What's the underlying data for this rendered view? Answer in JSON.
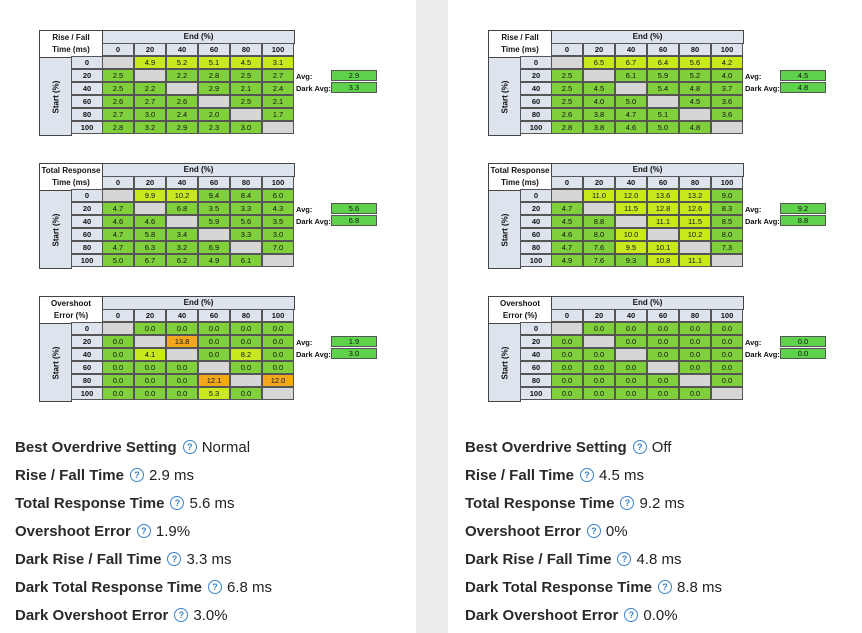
{
  "end_header": "End (%)",
  "start_header": "Start (%)",
  "col_headers": [
    "0",
    "20",
    "40",
    "60",
    "80",
    "100"
  ],
  "row_headers": [
    "0",
    "20",
    "40",
    "60",
    "80",
    "100"
  ],
  "avg_label": "Avg:",
  "dark_avg_label": "Dark Avg:",
  "colors": {
    "green": "#7fd03a",
    "yellow": "#c9e91e",
    "orange": "#f2a81a",
    "grey": "#d6d6d6",
    "avg_box": "#5ed24a",
    "help_blue": "#3a84c9"
  },
  "panels": [
    {
      "tables": [
        {
          "title": "Rise / Fall\nTime (ms)",
          "avg": "2.9",
          "dark_avg": "3.3",
          "rows": [
            [
              "",
              "4.9",
              "5.2",
              "5.1",
              "4.5",
              "3.1"
            ],
            [
              "2.5",
              "",
              "2.2",
              "2.8",
              "2.5",
              "2.7"
            ],
            [
              "2.5",
              "2.2",
              "",
              "2.9",
              "2.1",
              "2.4"
            ],
            [
              "2.6",
              "2.7",
              "2.6",
              "",
              "2.5",
              "2.1"
            ],
            [
              "2.7",
              "3.0",
              "2.4",
              "2.0",
              "",
              "1.7"
            ],
            [
              "2.8",
              "3.2",
              "2.9",
              "2.3",
              "3.0",
              ""
            ]
          ]
        },
        {
          "title": "Total Response\nTime (ms)",
          "avg": "5.6",
          "dark_avg": "6.8",
          "rows": [
            [
              "",
              "9.9",
              "10.2",
              "9.4",
              "8.4",
              "6.0"
            ],
            [
              "4.7",
              "",
              "6.8",
              "3.5",
              "3.3",
              "4.3"
            ],
            [
              "4.6",
              "4.6",
              "",
              "5.9",
              "5.6",
              "3.5"
            ],
            [
              "4.7",
              "5.8",
              "3.4",
              "",
              "3.3",
              "3.0"
            ],
            [
              "4.7",
              "6.3",
              "3.2",
              "6.9",
              "",
              "7.0"
            ],
            [
              "5.0",
              "6.7",
              "6.2",
              "4.9",
              "6.1",
              ""
            ]
          ]
        },
        {
          "title": "Overshoot\nError (%)",
          "avg": "1.9",
          "dark_avg": "3.0",
          "rows": [
            [
              "",
              "0.0",
              "0.0",
              "0.0",
              "0.0",
              "0.0"
            ],
            [
              "0.0",
              "",
              "13.8",
              "0.0",
              "0.0",
              "0.0"
            ],
            [
              "0.0",
              "4.1",
              "",
              "0.0",
              "8.2",
              "0.0"
            ],
            [
              "0.0",
              "0.0",
              "0.0",
              "",
              "0.0",
              "0.0"
            ],
            [
              "0.0",
              "0.0",
              "0.0",
              "12.1",
              "",
              "12.0"
            ],
            [
              "0.0",
              "0.0",
              "0.0",
              "5.3",
              "0.0",
              ""
            ]
          ]
        }
      ],
      "settings": [
        {
          "label": "Best Overdrive Setting",
          "value": "Normal"
        },
        {
          "label": "Rise / Fall Time",
          "value": "2.9 ms"
        },
        {
          "label": "Total Response Time",
          "value": "5.6 ms"
        },
        {
          "label": "Overshoot Error",
          "value": "1.9%"
        },
        {
          "label": "Dark Rise / Fall Time",
          "value": "3.3 ms"
        },
        {
          "label": "Dark Total Response Time",
          "value": "6.8 ms"
        },
        {
          "label": "Dark Overshoot Error",
          "value": "3.0%"
        }
      ]
    },
    {
      "tables": [
        {
          "title": "Rise / Fall\nTime (ms)",
          "avg": "4.5",
          "dark_avg": "4.8",
          "rows": [
            [
              "",
              "6.5",
              "6.7",
              "6.4",
              "5.6",
              "4.2"
            ],
            [
              "2.5",
              "",
              "6.1",
              "5.9",
              "5.2",
              "4.0"
            ],
            [
              "2.5",
              "4.5",
              "",
              "5.4",
              "4.8",
              "3.7"
            ],
            [
              "2.5",
              "4.0",
              "5.0",
              "",
              "4.5",
              "3.6"
            ],
            [
              "2.6",
              "3.8",
              "4.7",
              "5.1",
              "",
              "3.6"
            ],
            [
              "2.8",
              "3.8",
              "4.6",
              "5.0",
              "4.8",
              ""
            ]
          ]
        },
        {
          "title": "Total Response\nTime (ms)",
          "avg": "9.2",
          "dark_avg": "8.8",
          "rows": [
            [
              "",
              "11.0",
              "12.0",
              "13.6",
              "13.2",
              "9.0"
            ],
            [
              "4.7",
              "",
              "11.5",
              "12.8",
              "12.6",
              "8.3"
            ],
            [
              "4.5",
              "8.8",
              "",
              "11.1",
              "11.5",
              "8.5"
            ],
            [
              "4.6",
              "8.0",
              "10.0",
              "",
              "10.2",
              "8.0"
            ],
            [
              "4.7",
              "7.6",
              "9.5",
              "10.1",
              "",
              "7.3"
            ],
            [
              "4.9",
              "7.6",
              "9.3",
              "10.8",
              "11.1",
              ""
            ]
          ]
        },
        {
          "title": "Overshoot\nError (%)",
          "avg": "0.0",
          "dark_avg": "0.0",
          "rows": [
            [
              "",
              "0.0",
              "0.0",
              "0.0",
              "0.0",
              "0.0"
            ],
            [
              "0.0",
              "",
              "0.0",
              "0.0",
              "0.0",
              "0.0"
            ],
            [
              "0.0",
              "0.0",
              "",
              "0.0",
              "0.0",
              "0.0"
            ],
            [
              "0.0",
              "0.0",
              "0.0",
              "",
              "0.0",
              "0.0"
            ],
            [
              "0.0",
              "0.0",
              "0.0",
              "0.0",
              "",
              "0.0"
            ],
            [
              "0.0",
              "0.0",
              "0.0",
              "0.0",
              "0.0",
              ""
            ]
          ]
        }
      ],
      "settings": [
        {
          "label": "Best Overdrive Setting",
          "value": "Off"
        },
        {
          "label": "Rise / Fall Time",
          "value": "4.5 ms"
        },
        {
          "label": "Total Response Time",
          "value": "9.2 ms"
        },
        {
          "label": "Overshoot Error",
          "value": "0%"
        },
        {
          "label": "Dark Rise / Fall Time",
          "value": "4.8 ms"
        },
        {
          "label": "Dark Total Response Time",
          "value": "8.8 ms"
        },
        {
          "label": "Dark Overshoot Error",
          "value": "0.0%"
        }
      ]
    }
  ]
}
